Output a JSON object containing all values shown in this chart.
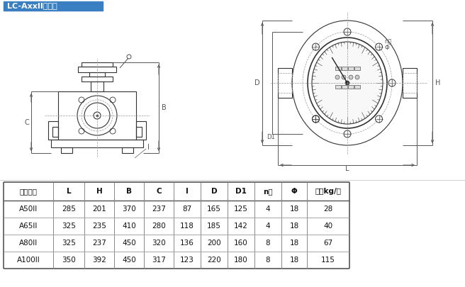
{
  "title": "LC-AxxII型輕型",
  "title_bg": "#3a7fc1",
  "title_color": "#ffffff",
  "table_headers": [
    "公稱通徑",
    "L",
    "H",
    "B",
    "C",
    "I",
    "D",
    "D1",
    "n个",
    "Φ",
    "重量kg/臺"
  ],
  "table_data": [
    [
      "A50II",
      "285",
      "201",
      "370",
      "237",
      "87",
      "165",
      "125",
      "4",
      "18",
      "28"
    ],
    [
      "A65II",
      "325",
      "235",
      "410",
      "280",
      "118",
      "185",
      "142",
      "4",
      "18",
      "40"
    ],
    [
      "A80II",
      "325",
      "237",
      "450",
      "320",
      "136",
      "200",
      "160",
      "8",
      "18",
      "67"
    ],
    [
      "A100II",
      "350",
      "392",
      "450",
      "317",
      "123",
      "220",
      "180",
      "8",
      "18",
      "115"
    ]
  ],
  "bg_color": "#ffffff",
  "lc": "#333333",
  "dl_color": "#555555",
  "dash_color": "#999999",
  "text_color": "#111111"
}
